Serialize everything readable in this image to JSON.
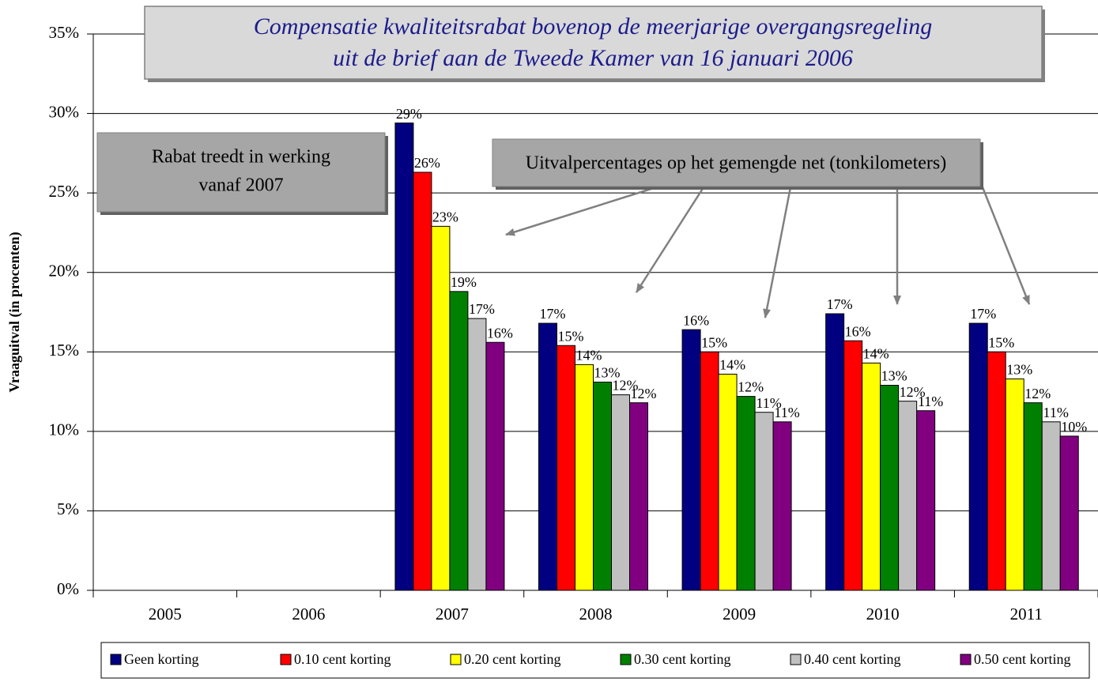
{
  "chart_data": {
    "type": "bar",
    "title_lines": [
      "Compensatie kwaliteitsrabat bovenop de meerjarige overgangsregeling",
      "uit de brief aan de Tweede Kamer van 16  januari 2006"
    ],
    "annotations": [
      {
        "lines": [
          "Rabat treedt in werking",
          "vanaf 2007"
        ]
      },
      {
        "lines": [
          "Uitvalpercentages op het gemengde net (tonkilometers)"
        ]
      }
    ],
    "y_label": "Vraaguitval (in procenten)",
    "categories": [
      "2005",
      "2006",
      "2007",
      "2008",
      "2009",
      "2010",
      "2011"
    ],
    "series": [
      {
        "name": "Geen korting",
        "color": "#000080",
        "values": [
          null,
          null,
          29.4,
          16.8,
          16.4,
          17.4,
          16.8
        ],
        "value_labels": [
          null,
          null,
          "29%",
          "17%",
          "16%",
          "17%",
          "17%"
        ]
      },
      {
        "name": "0.10 cent korting",
        "color": "#ff0000",
        "values": [
          null,
          null,
          26.3,
          15.4,
          15.0,
          15.7,
          15.0
        ],
        "value_labels": [
          null,
          null,
          "26%",
          "15%",
          "15%",
          "16%",
          "15%"
        ]
      },
      {
        "name": "0.20 cent korting",
        "color": "#ffff00",
        "values": [
          null,
          null,
          22.9,
          14.2,
          13.6,
          14.3,
          13.3
        ],
        "value_labels": [
          null,
          null,
          "23%",
          "14%",
          "14%",
          "14%",
          "13%"
        ]
      },
      {
        "name": "0.30 cent korting",
        "color": "#008000",
        "values": [
          null,
          null,
          18.8,
          13.1,
          12.2,
          12.9,
          11.8
        ],
        "value_labels": [
          null,
          null,
          "19%",
          "13%",
          "12%",
          "13%",
          "12%"
        ]
      },
      {
        "name": "0.40 cent korting",
        "color": "#c0c0c0",
        "values": [
          null,
          null,
          17.1,
          12.3,
          11.2,
          11.9,
          10.6
        ],
        "value_labels": [
          null,
          null,
          "17%",
          "12%",
          "11%",
          "12%",
          "11%"
        ]
      },
      {
        "name": "0.50 cent korting",
        "color": "#800080",
        "values": [
          null,
          null,
          15.6,
          11.8,
          10.6,
          11.3,
          9.7
        ],
        "value_labels": [
          null,
          null,
          "16%",
          "12%",
          "11%",
          "11%",
          "10%"
        ]
      }
    ],
    "ylim": [
      0,
      35
    ],
    "yticks": [
      {
        "value": 0,
        "label": "0%"
      },
      {
        "value": 5,
        "label": "5%"
      },
      {
        "value": 10,
        "label": "10%"
      },
      {
        "value": 15,
        "label": "15%"
      },
      {
        "value": 20,
        "label": "20%"
      },
      {
        "value": 25,
        "label": "25%"
      },
      {
        "value": 30,
        "label": "30%"
      },
      {
        "value": 35,
        "label": "35%"
      }
    ],
    "grid": true,
    "legend": "bottom"
  }
}
